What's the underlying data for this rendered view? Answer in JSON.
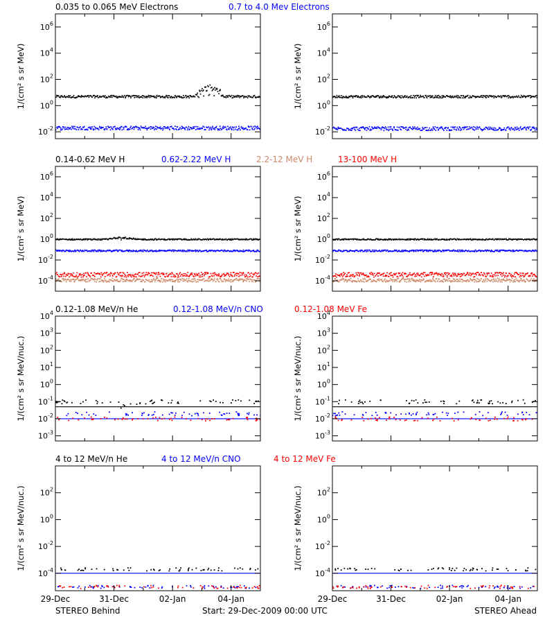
{
  "figure": {
    "footer_left": "STEREO Behind",
    "footer_center": "Start: 29-Dec-2009 00:00 UTC",
    "footer_right": "STEREO Ahead",
    "x_ticks": [
      "29-Dec",
      "31-Dec",
      "02-Jan",
      "04-Jan"
    ]
  },
  "colors": {
    "black": "#000000",
    "blue": "#0000ff",
    "salmon": "#cc8866",
    "red": "#ff0000"
  },
  "chart_data": [
    {
      "type": "scatter",
      "row": 1,
      "spacecraft": "STEREO Behind",
      "ylabel": "1/(cm² s sr MeV)",
      "yscale": "log",
      "ylim": [
        0.003,
        10000000
      ],
      "yticks": [
        "10^6",
        "10^4",
        "10^2",
        "10^0",
        "10^-2"
      ],
      "xlim": [
        "2009-12-29",
        "2010-01-05"
      ],
      "x_ticks": [
        "29-Dec",
        "31-Dec",
        "02-Jan",
        "04-Jan"
      ],
      "legend": [
        "0.035 to 0.065 MeV Electrons",
        "0.7 to 4.0 Mev Electrons"
      ],
      "series": [
        {
          "name": "0.035 to 0.065 MeV Electrons",
          "color": "#000000",
          "level": 5,
          "spread": 1.25,
          "bump": {
            "x": [
              0.68,
              0.82
            ],
            "y": 9
          }
        },
        {
          "name": "0.7 to 4.0 Mev Electrons",
          "color": "#0000ff",
          "level": 0.02,
          "spread": 1.4
        }
      ]
    },
    {
      "type": "scatter",
      "row": 1,
      "spacecraft": "STEREO Ahead",
      "ylabel": "1/(cm² s sr MeV)",
      "yscale": "log",
      "ylim": [
        0.003,
        10000000
      ],
      "yticks": [
        "10^6",
        "10^4",
        "10^2",
        "10^0",
        "10^-2"
      ],
      "xlim": [
        "2009-12-29",
        "2010-01-05"
      ],
      "x_ticks": [
        "29-Dec",
        "31-Dec",
        "02-Jan",
        "04-Jan"
      ],
      "series": [
        {
          "name": "0.035 to 0.065 MeV Electrons",
          "color": "#000000",
          "level": 5,
          "spread": 1.25
        },
        {
          "name": "0.7 to 4.0 Mev Electrons",
          "color": "#0000ff",
          "level": 0.018,
          "spread": 1.4
        }
      ]
    },
    {
      "type": "scatter",
      "row": 2,
      "spacecraft": "STEREO Behind",
      "ylabel": "1/(cm² s sr MeV)",
      "yscale": "log",
      "ylim": [
        1e-05,
        10000000
      ],
      "yticks": [
        "10^6",
        "10^4",
        "10^2",
        "10^0",
        "10^-2",
        "10^-4"
      ],
      "xlim": [
        "2009-12-29",
        "2010-01-05"
      ],
      "x_ticks": [
        "29-Dec",
        "31-Dec",
        "02-Jan",
        "04-Jan"
      ],
      "legend": [
        "0.14-0.62 MeV H",
        "0.62-2.22 MeV H",
        "2.2-12 MeV H",
        "13-100 MeV H"
      ],
      "series": [
        {
          "name": "0.14-0.62 MeV H",
          "color": "#000000",
          "level": 1,
          "spread": 1.15,
          "bump": {
            "x": [
              0.25,
              0.4
            ],
            "y": 2
          }
        },
        {
          "name": "0.62-2.22 MeV H",
          "color": "#0000ff",
          "level": 0.08,
          "spread": 1.2
        },
        {
          "name": "2.2-12 MeV H",
          "color": "#cc8866",
          "level": 0.00012,
          "spread": 1.5
        },
        {
          "name": "13-100 MeV H",
          "color": "#ff0000",
          "level": 0.0004,
          "spread": 1.7
        }
      ]
    },
    {
      "type": "scatter",
      "row": 2,
      "spacecraft": "STEREO Ahead",
      "ylabel": "1/(cm² s sr MeV)",
      "yscale": "log",
      "ylim": [
        1e-05,
        10000000
      ],
      "yticks": [
        "10^6",
        "10^4",
        "10^2",
        "10^0",
        "10^-2",
        "10^-4"
      ],
      "xlim": [
        "2009-12-29",
        "2010-01-05"
      ],
      "x_ticks": [
        "29-Dec",
        "31-Dec",
        "02-Jan",
        "04-Jan"
      ],
      "series": [
        {
          "name": "0.14-0.62 MeV H",
          "color": "#000000",
          "level": 1,
          "spread": 1.15
        },
        {
          "name": "0.62-2.22 MeV H",
          "color": "#0000ff",
          "level": 0.08,
          "spread": 1.2
        },
        {
          "name": "2.2-12 MeV H",
          "color": "#cc8866",
          "level": 0.00012,
          "spread": 1.5
        },
        {
          "name": "13-100 MeV H",
          "color": "#ff0000",
          "level": 0.0004,
          "spread": 1.7
        }
      ]
    },
    {
      "type": "scatter",
      "row": 3,
      "spacecraft": "STEREO Behind",
      "ylabel": "1/(cm² s sr MeV/nuc.)",
      "yscale": "log",
      "ylim": [
        0.0005,
        10000
      ],
      "yticks": [
        "10^4",
        "10^3",
        "10^2",
        "10^1",
        "10^0",
        "10^-1",
        "10^-2",
        "10^-3"
      ],
      "xlim": [
        "2009-12-29",
        "2010-01-05"
      ],
      "x_ticks": [
        "29-Dec",
        "31-Dec",
        "02-Jan",
        "04-Jan"
      ],
      "legend": [
        "0.12-1.08 MeV/n He",
        "0.12-1.08 MeV/n CNO",
        "0.12-1.08 MeV Fe"
      ],
      "series": [
        {
          "name": "0.12-1.08 MeV/n He",
          "color": "#000000",
          "level": 0.1,
          "baseline": 0.05,
          "bump": {
            "x": [
              0.22,
              0.45
            ],
            "y": 0.3
          }
        },
        {
          "name": "0.12-1.08 MeV/n CNO",
          "color": "#0000ff",
          "level": 0.02,
          "baseline": 0.01
        },
        {
          "name": "0.12-1.08 MeV Fe",
          "color": "#ff0000",
          "level": 0.01
        }
      ]
    },
    {
      "type": "scatter",
      "row": 3,
      "spacecraft": "STEREO Ahead",
      "ylabel": "1/(cm² s sr MeV/nuc.)",
      "yscale": "log",
      "ylim": [
        0.0005,
        10000
      ],
      "yticks": [
        "10^4",
        "10^3",
        "10^2",
        "10^1",
        "10^0",
        "10^-1",
        "10^-2",
        "10^-3"
      ],
      "xlim": [
        "2009-12-29",
        "2010-01-05"
      ],
      "x_ticks": [
        "29-Dec",
        "31-Dec",
        "02-Jan",
        "04-Jan"
      ],
      "series": [
        {
          "name": "0.12-1.08 MeV/n He",
          "color": "#000000",
          "level": 0.1,
          "baseline": 0.05
        },
        {
          "name": "0.12-1.08 MeV/n CNO",
          "color": "#0000ff",
          "level": 0.02,
          "baseline": 0.01
        },
        {
          "name": "0.12-1.08 MeV Fe",
          "color": "#ff0000",
          "level": 0.01
        }
      ]
    },
    {
      "type": "scatter",
      "row": 4,
      "spacecraft": "STEREO Behind",
      "ylabel": "1/(cm² s sr MeV/nuc.)",
      "yscale": "log",
      "ylim": [
        5e-06,
        10000
      ],
      "yticks": [
        "10^2",
        "10^0",
        "10^-2",
        "10^-4"
      ],
      "xlim": [
        "2009-12-29",
        "2010-01-05"
      ],
      "x_ticks": [
        "29-Dec",
        "31-Dec",
        "02-Jan",
        "04-Jan"
      ],
      "legend": [
        "4 to 12 MeV/n He",
        "4 to 12 MeV/n CNO",
        "4 to 12 MeV Fe"
      ],
      "series": [
        {
          "name": "4 to 12 MeV/n He",
          "color": "#000000",
          "level": 0.0002
        },
        {
          "name": "4 to 12 MeV/n CNO",
          "color": "#0000ff",
          "level": 1e-05,
          "baseline": 0.0001
        },
        {
          "name": "4 to 12 MeV Fe",
          "color": "#ff0000",
          "level": 1e-05
        }
      ]
    },
    {
      "type": "scatter",
      "row": 4,
      "spacecraft": "STEREO Ahead",
      "ylabel": "1/(cm² s sr MeV/nuc.)",
      "yscale": "log",
      "ylim": [
        5e-06,
        10000
      ],
      "yticks": [
        "10^2",
        "10^0",
        "10^-2",
        "10^-4"
      ],
      "xlim": [
        "2009-12-29",
        "2010-01-05"
      ],
      "x_ticks": [
        "29-Dec",
        "31-Dec",
        "02-Jan",
        "04-Jan"
      ],
      "series": [
        {
          "name": "4 to 12 MeV/n He",
          "color": "#000000",
          "level": 0.0002
        },
        {
          "name": "4 to 12 MeV/n CNO",
          "color": "#0000ff",
          "level": 1e-05,
          "baseline": 0.0001
        },
        {
          "name": "4 to 12 MeV Fe",
          "color": "#ff0000",
          "level": 1e-05
        }
      ]
    }
  ]
}
